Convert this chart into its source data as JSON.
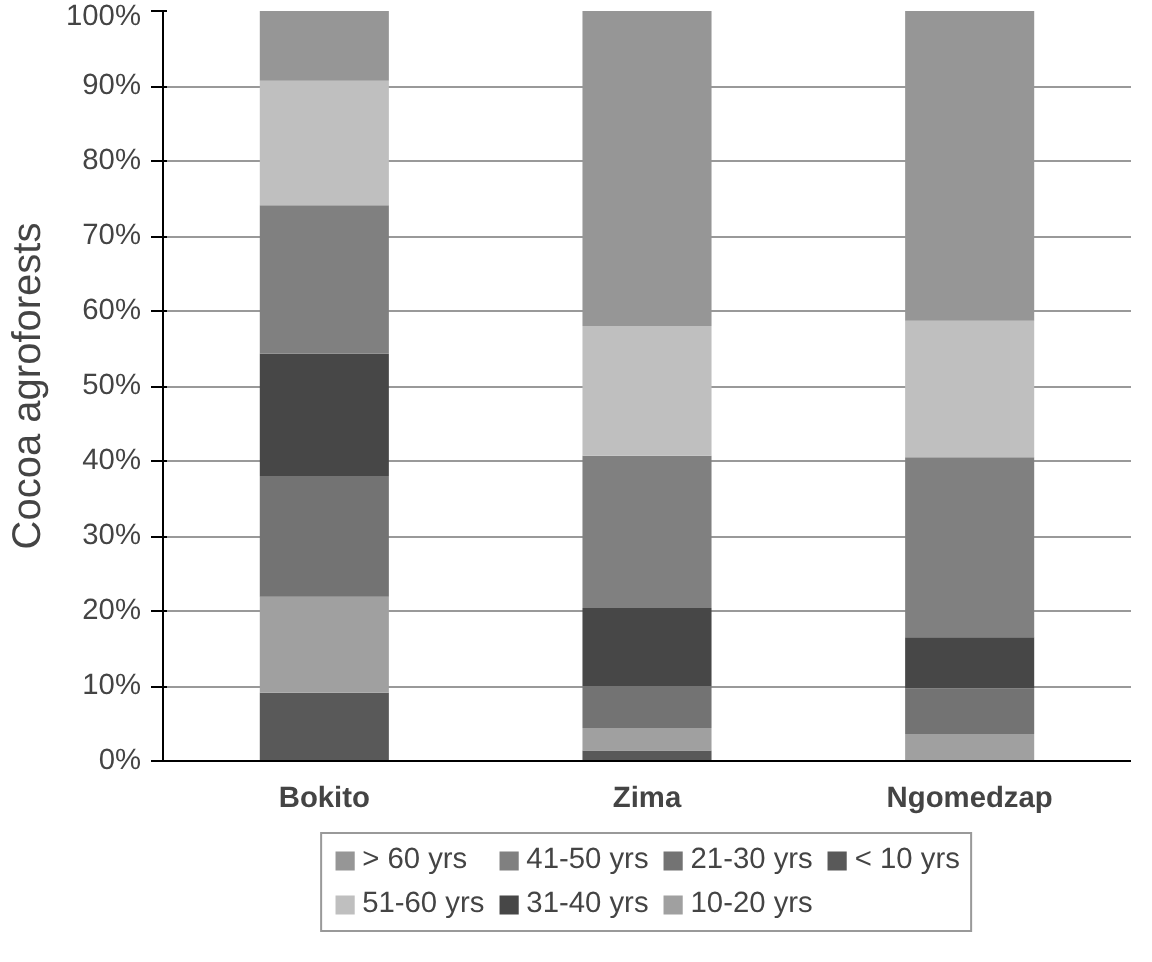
{
  "chart_data": {
    "type": "bar",
    "stacked": true,
    "ylabel": "Cocoa agroforests",
    "categories": [
      "Bokito",
      "Zima",
      "Ngomedzap"
    ],
    "series": [
      {
        "name": "< 10 yrs",
        "color": "#595959",
        "values": [
          9.1,
          1.4,
          0
        ]
      },
      {
        "name": "10-20 yrs",
        "color": "#a0a0a0",
        "values": [
          12.8,
          3.0,
          3.6
        ]
      },
      {
        "name": "21-30 yrs",
        "color": "#737373",
        "values": [
          16.1,
          5.6,
          6.1
        ]
      },
      {
        "name": "31-40 yrs",
        "color": "#474747",
        "values": [
          16.3,
          10.4,
          6.8
        ]
      },
      {
        "name": "41-50 yrs",
        "color": "#808080",
        "values": [
          19.8,
          20.3,
          24.0
        ]
      },
      {
        "name": "51-60 yrs",
        "color": "#bfbfbf",
        "values": [
          16.6,
          17.3,
          18.2
        ]
      },
      {
        "name": "> 60 yrs",
        "color": "#969696",
        "values": [
          9.3,
          42.0,
          41.3
        ]
      }
    ],
    "ylim": [
      0,
      100
    ],
    "yticks": [
      {
        "value": 0,
        "label": "0%"
      },
      {
        "value": 10,
        "label": "10%"
      },
      {
        "value": 20,
        "label": "20%"
      },
      {
        "value": 30,
        "label": "30%"
      },
      {
        "value": 40,
        "label": "40%"
      },
      {
        "value": 50,
        "label": "50%"
      },
      {
        "value": 60,
        "label": "60%"
      },
      {
        "value": 70,
        "label": "70%"
      },
      {
        "value": 80,
        "label": "80%"
      },
      {
        "value": 90,
        "label": "90%"
      },
      {
        "value": 100,
        "label": "100%"
      }
    ],
    "grid": "y",
    "legend": "bottom"
  }
}
